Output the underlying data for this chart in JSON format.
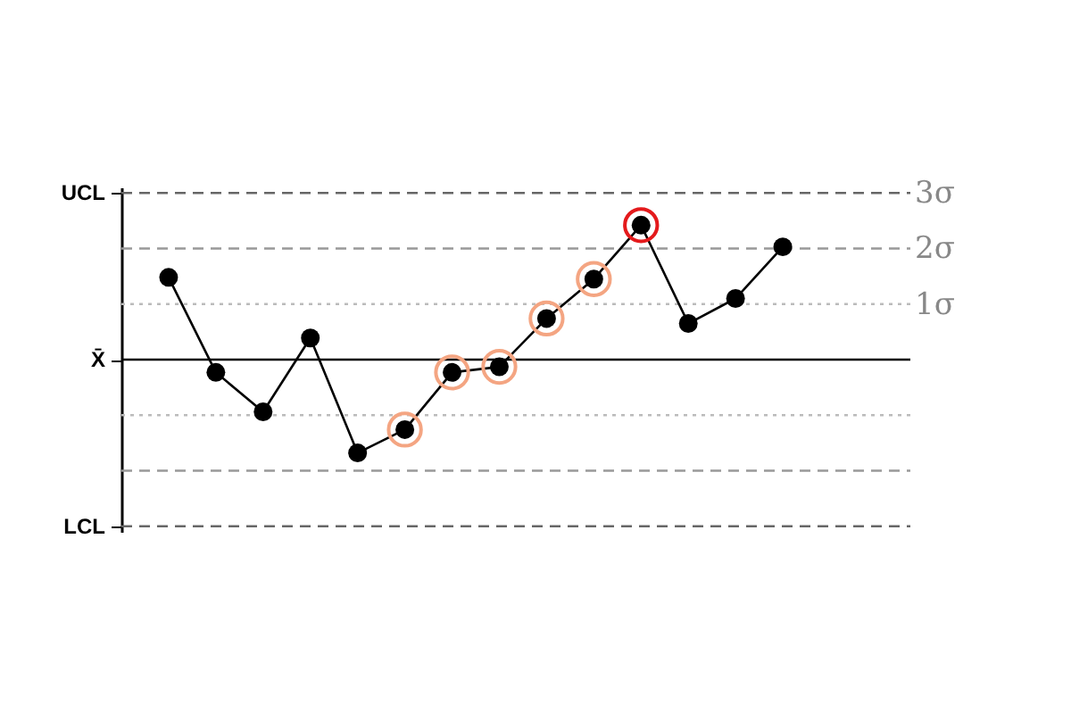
{
  "chart_data": {
    "type": "line",
    "categories": [
      null,
      null,
      null,
      null,
      null,
      null,
      null,
      null,
      null,
      null,
      null,
      null,
      null,
      null
    ],
    "series": [
      {
        "color": "#000000",
        "marker": "circle",
        "values": [
          1.48,
          -0.23,
          -0.94,
          0.39,
          -1.68,
          -1.26,
          -0.23,
          -0.13,
          0.74,
          1.45,
          2.42,
          0.65,
          1.1,
          2.03
        ]
      },
      {
        "type": "scatter",
        "color": "#f4a582",
        "marker": "circle",
        "values": [
          null,
          null,
          null,
          null,
          null,
          -1.26,
          -0.23,
          -0.13,
          0.74,
          1.45,
          null,
          null,
          null,
          null
        ]
      },
      {
        "type": "scatter",
        "color": "#e41a1c",
        "marker": "circle",
        "values": [
          null,
          null,
          null,
          null,
          null,
          null,
          null,
          null,
          null,
          null,
          2.42,
          null,
          null,
          null
        ]
      }
    ],
    "ylim": [
      -3.1,
      3.1
    ],
    "yticks": [
      {
        "value": 3,
        "label": "3σ"
      },
      {
        "value": 2,
        "label": "2σ"
      },
      {
        "value": 1,
        "label": "1σ"
      }
    ],
    "ref_lines": [
      {
        "axis": "y",
        "value": 3,
        "label": "UCL",
        "color": "#666666",
        "line_style": "dashed"
      },
      {
        "axis": "y",
        "value": 2,
        "color": "#999999",
        "line_style": "dashed"
      },
      {
        "axis": "y",
        "value": 1,
        "color": "#bbbbbb",
        "line_style": "dotted"
      },
      {
        "axis": "y",
        "value": 0,
        "label": "X̄",
        "color": "#000000",
        "line_style": "solid"
      },
      {
        "axis": "y",
        "value": -1,
        "color": "#bbbbbb",
        "line_style": "dotted"
      },
      {
        "axis": "y",
        "value": -2,
        "color": "#999999",
        "line_style": "dashed"
      },
      {
        "axis": "y",
        "value": -3,
        "label": "LCL",
        "color": "#666666",
        "line_style": "dashed"
      }
    ],
    "grid": false
  }
}
